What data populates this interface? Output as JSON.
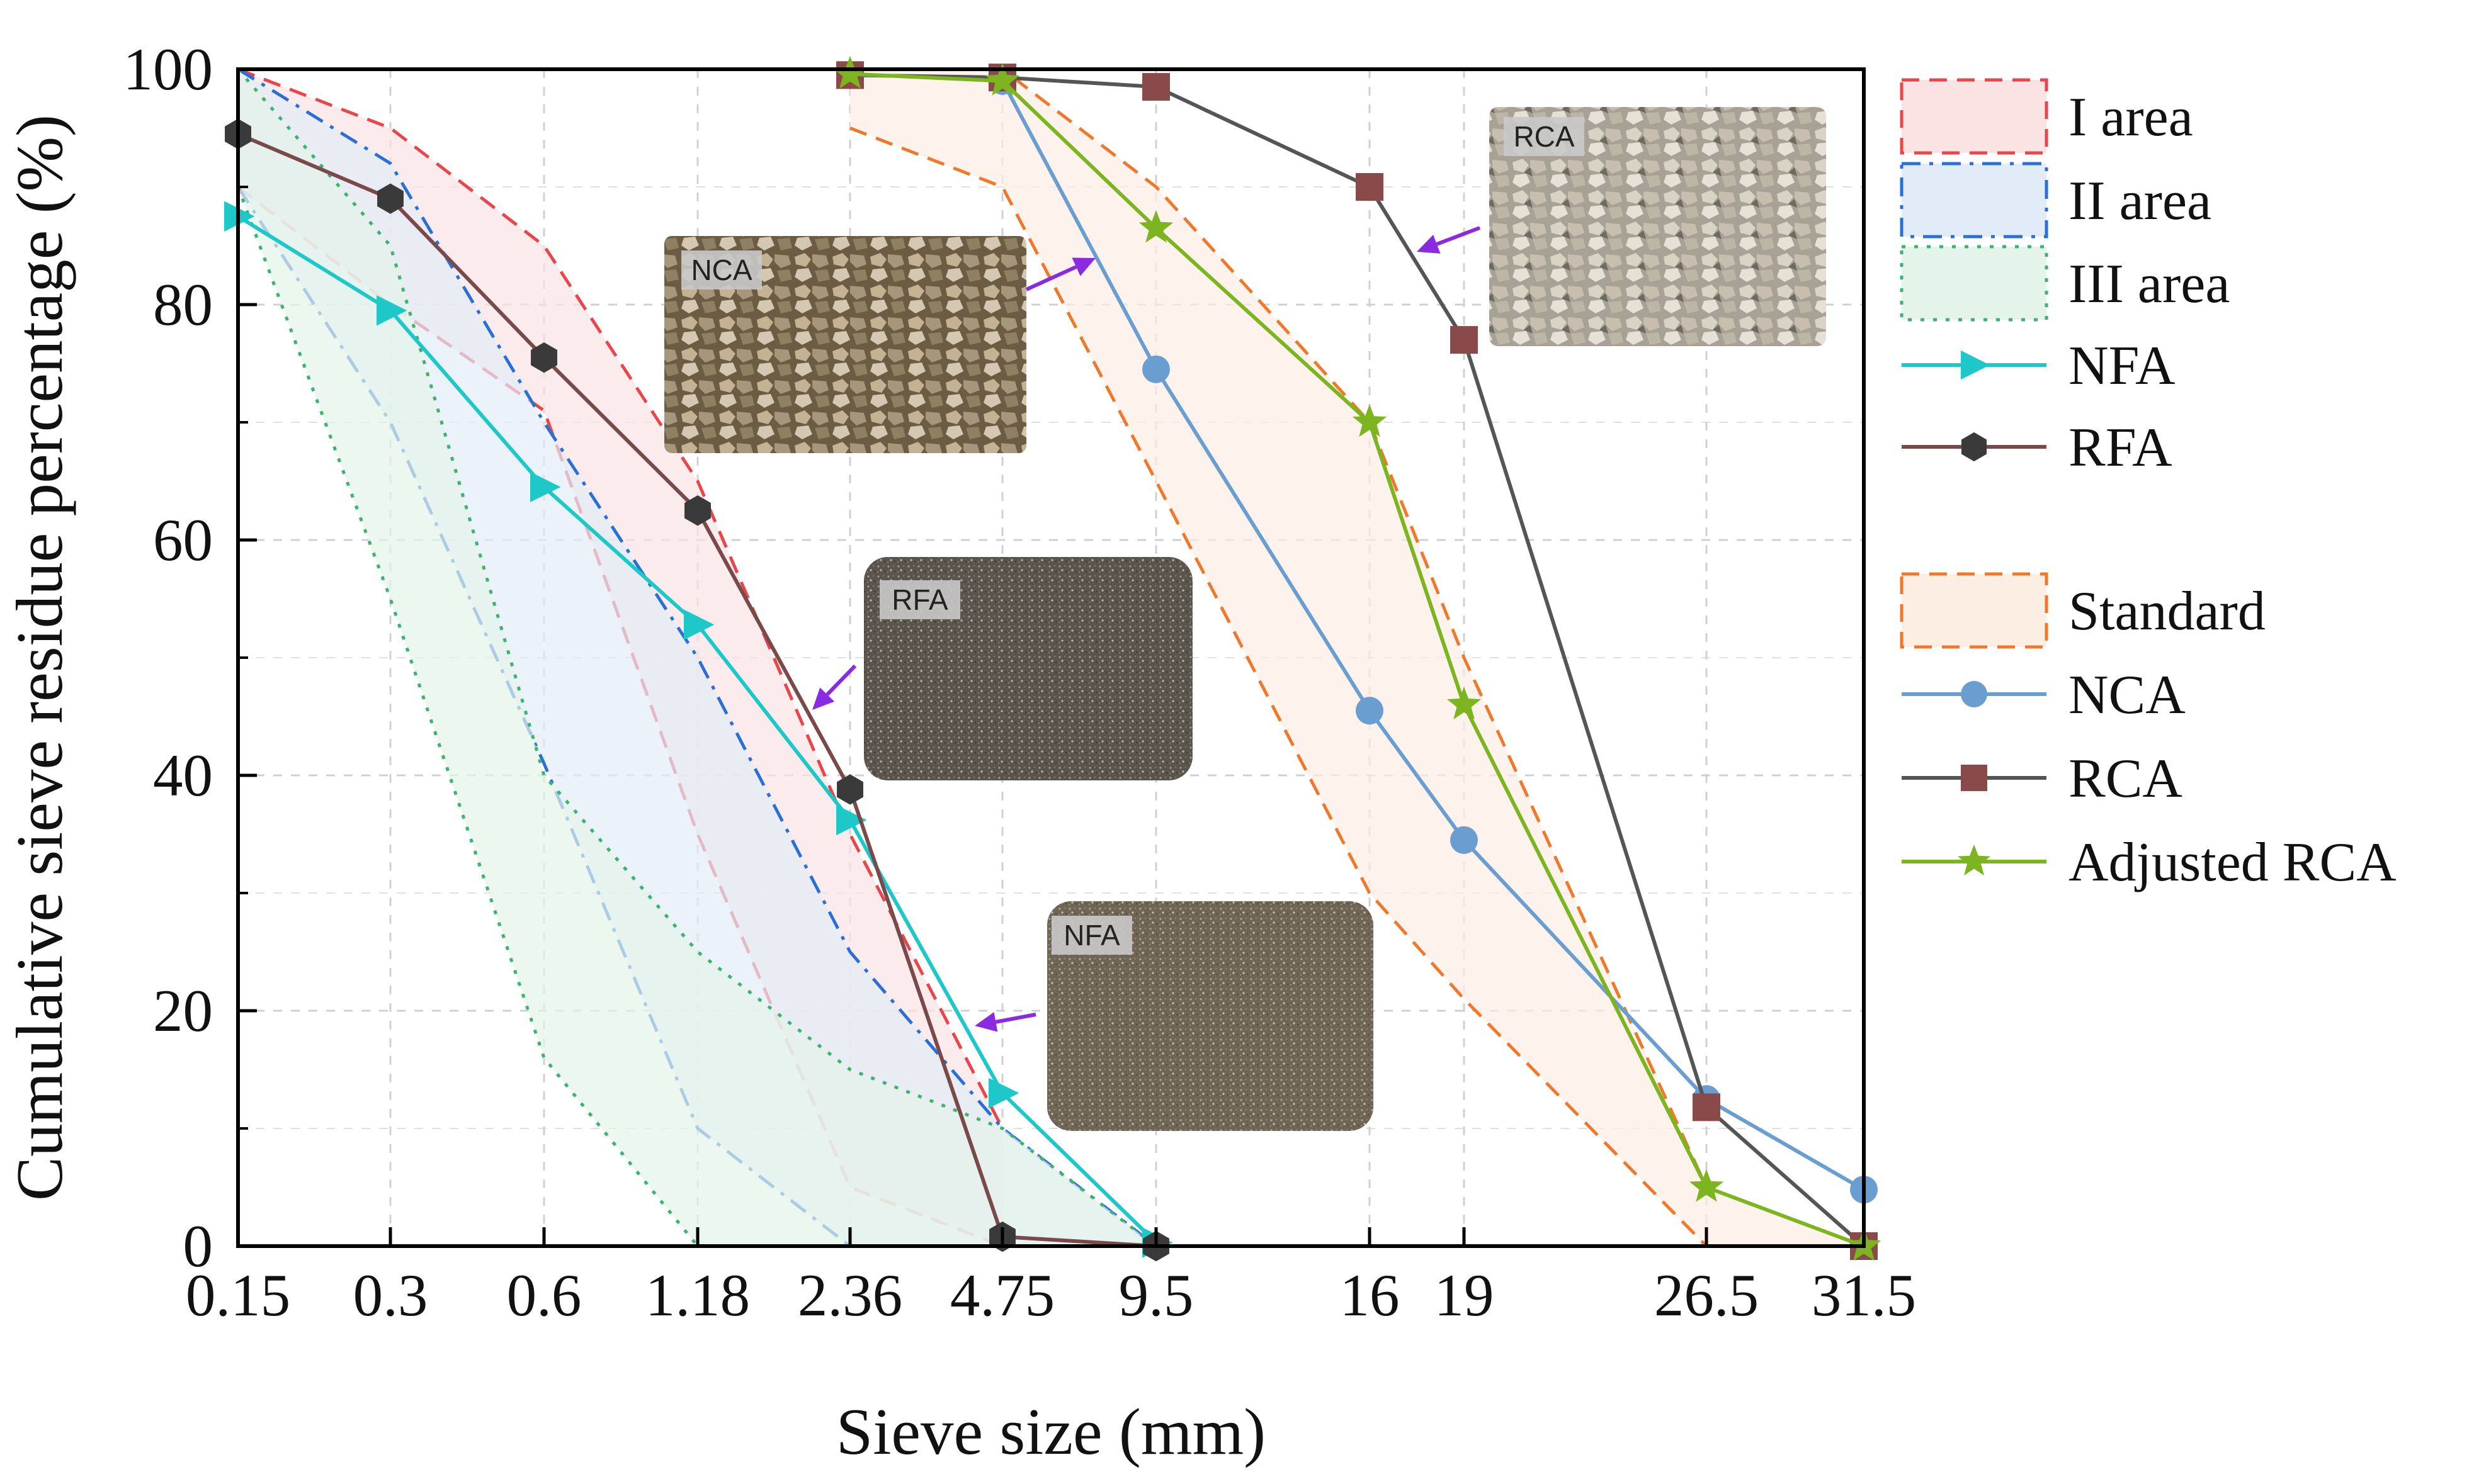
{
  "chart_data": {
    "type": "line",
    "xlabel": "Sieve size (mm)",
    "ylabel": "Cumulative sieve residue percentage (%)",
    "ylim": [
      0,
      100
    ],
    "yticks": [
      "0",
      "20",
      "40",
      "60",
      "80",
      "100"
    ],
    "categories": [
      "0.15",
      "0.3",
      "0.6",
      "1.18",
      "2.36",
      "4.75",
      "9.5",
      "16",
      "19",
      "26.5",
      "31.5"
    ],
    "grid": true,
    "areas": [
      {
        "name": "I area",
        "color": "#e8464a",
        "fill": "#fbe3e4",
        "upper": [
          [
            0.15,
            100
          ],
          [
            0.3,
            95
          ],
          [
            0.6,
            85
          ],
          [
            1.18,
            65
          ],
          [
            2.36,
            35
          ],
          [
            4.75,
            10
          ]
        ],
        "lower": [
          [
            0.15,
            90
          ],
          [
            0.3,
            80
          ],
          [
            0.6,
            71
          ],
          [
            1.18,
            35
          ],
          [
            2.36,
            5
          ],
          [
            4.75,
            0
          ]
        ]
      },
      {
        "name": "II area",
        "color": "#2a6fd6",
        "fill": "#e2ecf8",
        "upper": [
          [
            0.15,
            100
          ],
          [
            0.3,
            92
          ],
          [
            0.6,
            70
          ],
          [
            1.18,
            50
          ],
          [
            2.36,
            25
          ],
          [
            4.75,
            10
          ],
          [
            9.5,
            0
          ]
        ],
        "lower": [
          [
            0.15,
            90
          ],
          [
            0.3,
            70
          ],
          [
            0.6,
            41
          ],
          [
            1.18,
            10
          ],
          [
            2.36,
            0
          ]
        ]
      },
      {
        "name": "III area",
        "color": "#3cb46e",
        "fill": "#e4f4ea",
        "upper": [
          [
            0.15,
            100
          ],
          [
            0.3,
            85
          ],
          [
            0.6,
            40
          ],
          [
            1.18,
            25
          ],
          [
            2.36,
            15
          ],
          [
            4.75,
            10
          ],
          [
            9.5,
            0
          ]
        ],
        "lower": [
          [
            0.15,
            90
          ],
          [
            0.3,
            55
          ],
          [
            0.6,
            16
          ],
          [
            1.18,
            0
          ]
        ]
      },
      {
        "name": "Standard",
        "color": "#f0782a",
        "fill": "#fdeee4",
        "upper": [
          [
            2.36,
            100
          ],
          [
            4.75,
            100
          ],
          [
            9.5,
            90
          ],
          [
            16,
            70
          ],
          [
            19,
            50
          ],
          [
            26.5,
            5
          ],
          [
            31.5,
            0
          ]
        ],
        "lower": [
          [
            2.36,
            95
          ],
          [
            4.75,
            90
          ],
          [
            9.5,
            65
          ],
          [
            16,
            30
          ],
          [
            19,
            21
          ],
          [
            26.5,
            0
          ]
        ]
      }
    ],
    "series": [
      {
        "name": "NFA",
        "color": "#1ec8c8",
        "marker": "triangle-right",
        "x": [
          "0.15",
          "0.3",
          "0.6",
          "1.18",
          "2.36",
          "4.75",
          "9.5"
        ],
        "values": [
          87.5,
          79.5,
          64.5,
          52.8,
          36.2,
          13.0,
          0.3
        ]
      },
      {
        "name": "RFA",
        "color": "#7a4a4a",
        "markerColor": "#3a3a3a",
        "marker": "hexagon",
        "x": [
          "0.15",
          "0.3",
          "0.6",
          "1.18",
          "2.36",
          "4.75",
          "9.5"
        ],
        "values": [
          94.5,
          89.0,
          75.5,
          62.5,
          38.8,
          0.8,
          0.0
        ]
      },
      {
        "name": "NCA",
        "color": "#6a9ed0",
        "markerColor": "#6a9ed0",
        "marker": "circle",
        "x": [
          "4.75",
          "9.5",
          "16",
          "19",
          "26.5",
          "31.5"
        ],
        "values": [
          99.0,
          74.5,
          45.5,
          34.5,
          12.5,
          4.8
        ]
      },
      {
        "name": "RCA",
        "color": "#555555",
        "markerColor": "#8a4a4a",
        "marker": "square",
        "x": [
          "2.36",
          "4.75",
          "9.5",
          "16",
          "19",
          "26.5",
          "31.5"
        ],
        "values": [
          99.5,
          99.3,
          98.5,
          90.0,
          77.0,
          11.8,
          0.0
        ]
      },
      {
        "name": "Adjusted RCA",
        "color": "#7cb520",
        "markerColor": "#7cb520",
        "marker": "star",
        "x": [
          "2.36",
          "4.75",
          "9.5",
          "16",
          "19",
          "26.5",
          "31.5"
        ],
        "values": [
          99.6,
          99.0,
          86.5,
          70.0,
          46.0,
          5.0,
          0.0
        ]
      }
    ],
    "legend": {
      "placement": "right",
      "group1": [
        "I area",
        "II area",
        "III area",
        "NFA",
        "RFA"
      ],
      "group2": [
        "Standard",
        "NCA",
        "RCA",
        "Adjusted RCA"
      ]
    },
    "photos": [
      {
        "label": "NCA",
        "kind": "coarse-natural"
      },
      {
        "label": "RCA",
        "kind": "coarse-recycled"
      },
      {
        "label": "RFA",
        "kind": "fine-recycled"
      },
      {
        "label": "NFA",
        "kind": "fine-natural"
      }
    ]
  }
}
